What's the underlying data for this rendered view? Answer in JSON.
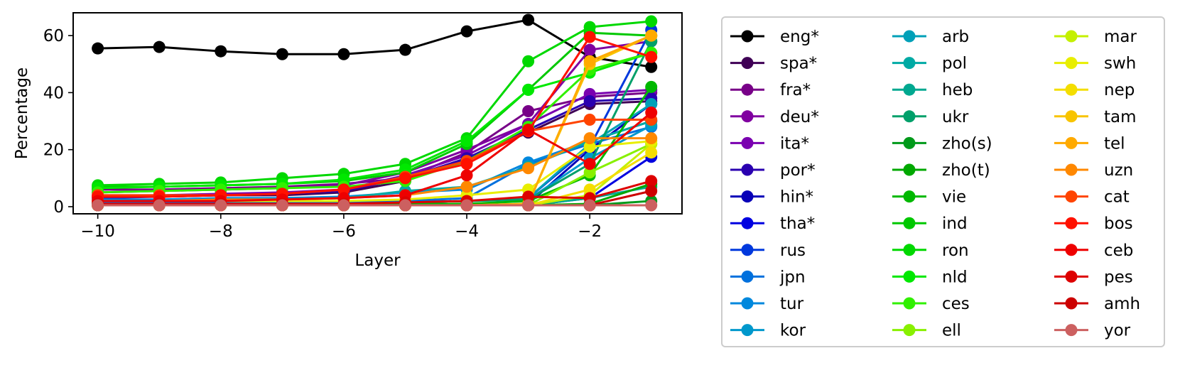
{
  "chart_data": {
    "type": "line",
    "title": "",
    "xlabel": "Layer",
    "ylabel": "Percentage",
    "x": [
      -10,
      -9,
      -8,
      -7,
      -6,
      -5,
      -4,
      -3,
      -2,
      -1
    ],
    "xlim": [
      -10.4,
      -0.5
    ],
    "ylim": [
      -2.5,
      68
    ],
    "xticks": [
      -10,
      -8,
      -6,
      -4,
      -2
    ],
    "xtick_labels": [
      "−10",
      "−8",
      "−6",
      "−4",
      "−2"
    ],
    "yticks": [
      0,
      20,
      40,
      60
    ],
    "ytick_labels": [
      "0",
      "20",
      "40",
      "60"
    ],
    "grid": false,
    "legend_placement": "outside-right",
    "legend_columns": 3,
    "series": [
      {
        "name": "eng*",
        "color": "#000000",
        "values": [
          55.5,
          56,
          54.5,
          53.5,
          53.5,
          55,
          61.5,
          65.5,
          52.5,
          49
        ]
      },
      {
        "name": "spa*",
        "color": "#3f0055",
        "values": [
          3.5,
          3.5,
          4,
          4,
          5,
          9,
          17,
          26,
          36,
          37
        ]
      },
      {
        "name": "fra*",
        "color": "#780088",
        "values": [
          6,
          6,
          6.5,
          7,
          8,
          10,
          19,
          33.5,
          38.5,
          40
        ]
      },
      {
        "name": "deu*",
        "color": "#8000a0",
        "values": [
          5,
          5.5,
          6,
          6.5,
          7.5,
          12,
          20,
          29,
          55,
          58
        ]
      },
      {
        "name": "ita*",
        "color": "#7a00b0",
        "values": [
          4,
          4,
          4.5,
          5,
          6,
          11,
          18,
          29,
          39.5,
          41
        ]
      },
      {
        "name": "por*",
        "color": "#2a00b0",
        "values": [
          3,
          3.5,
          4,
          4.5,
          5.5,
          10,
          17,
          27,
          37,
          38
        ]
      },
      {
        "name": "hin*",
        "color": "#0800b8",
        "values": [
          0.5,
          0.5,
          0.5,
          0.5,
          0.5,
          0.5,
          0.5,
          1,
          20,
          36
        ]
      },
      {
        "name": "tha*",
        "color": "#0000e0",
        "values": [
          0.5,
          0.5,
          0.5,
          0.5,
          0.5,
          0.5,
          0.5,
          0.5,
          3,
          17.5
        ]
      },
      {
        "name": "rus",
        "color": "#0038dd",
        "values": [
          1,
          1,
          1,
          1,
          1,
          1.5,
          2,
          3,
          21,
          62
        ]
      },
      {
        "name": "jpn",
        "color": "#0070dd",
        "values": [
          1.5,
          1.5,
          1.5,
          1.5,
          1.5,
          2,
          3,
          15,
          22,
          28
        ]
      },
      {
        "name": "tur",
        "color": "#0088dd",
        "values": [
          2.5,
          2.5,
          3,
          3,
          3.5,
          5,
          6,
          15.5,
          23,
          30
        ]
      },
      {
        "name": "kor",
        "color": "#0098cc",
        "values": [
          1,
          1,
          1,
          1,
          1,
          1.5,
          2,
          2.5,
          17,
          28.5
        ]
      },
      {
        "name": "arb",
        "color": "#00a0b8",
        "values": [
          1,
          1,
          1,
          1,
          1,
          1.5,
          2,
          3,
          22,
          36
        ]
      },
      {
        "name": "pol",
        "color": "#00aaa4",
        "values": [
          2,
          2,
          2,
          2.5,
          3,
          5.5,
          7,
          14,
          23,
          30
        ]
      },
      {
        "name": "heb",
        "color": "#00a890",
        "values": [
          0.5,
          0.5,
          0.5,
          0.5,
          0.5,
          0.5,
          0.5,
          0.5,
          3,
          7
        ]
      },
      {
        "name": "ukr",
        "color": "#00a06a",
        "values": [
          1,
          1,
          1,
          1,
          1,
          1.5,
          2,
          2.5,
          15,
          58
        ]
      },
      {
        "name": "zho(s)",
        "color": "#009a1a",
        "values": [
          0.5,
          0.5,
          0.5,
          0.5,
          0.5,
          0.5,
          0.5,
          0.5,
          0.5,
          2
        ]
      },
      {
        "name": "zho(t)",
        "color": "#00a800",
        "values": [
          0.5,
          0.5,
          0.5,
          0.5,
          0.5,
          0.5,
          0.5,
          0.5,
          1,
          8
        ]
      },
      {
        "name": "vie",
        "color": "#00b800",
        "values": [
          0.5,
          0.5,
          0.5,
          0.5,
          0.5,
          1,
          1,
          2,
          11,
          42
        ]
      },
      {
        "name": "ind",
        "color": "#00c800",
        "values": [
          7,
          7,
          7.5,
          8,
          9,
          12,
          22,
          41,
          61,
          60
        ]
      },
      {
        "name": "ron",
        "color": "#00d800",
        "values": [
          7.5,
          8,
          8.5,
          10,
          11.5,
          15,
          24,
          51,
          63,
          65
        ]
      },
      {
        "name": "nld",
        "color": "#00e800",
        "values": [
          6.5,
          7,
          7.5,
          8,
          9.5,
          13,
          23,
          41,
          47,
          54
        ]
      },
      {
        "name": "ces",
        "color": "#30f000",
        "values": [
          5,
          5.5,
          6,
          6.5,
          7,
          9,
          16,
          28,
          48,
          54
        ]
      },
      {
        "name": "ell",
        "color": "#88f000",
        "values": [
          0.5,
          0.5,
          0.5,
          0.5,
          0.5,
          0.5,
          0.5,
          0.5,
          12,
          22
        ]
      },
      {
        "name": "mar",
        "color": "#c4f000",
        "values": [
          0.5,
          0.5,
          0.5,
          0.5,
          0.5,
          0.5,
          0.5,
          0.5,
          4,
          22
        ]
      },
      {
        "name": "swh",
        "color": "#e8ee00",
        "values": [
          2,
          2,
          2,
          2,
          2,
          2.5,
          4,
          6,
          21,
          23
        ]
      },
      {
        "name": "nep",
        "color": "#f4de00",
        "values": [
          0.5,
          0.5,
          0.5,
          0.5,
          0.5,
          0.5,
          0.5,
          0.5,
          6,
          19
        ]
      },
      {
        "name": "tam",
        "color": "#f8c400",
        "values": [
          0.5,
          0.5,
          0.5,
          0.5,
          0.5,
          0.5,
          0.5,
          1,
          50,
          60
        ]
      },
      {
        "name": "tel",
        "color": "#ffaa00",
        "values": [
          0.5,
          0.5,
          0.5,
          0.5,
          0.5,
          0.5,
          0.5,
          1,
          51,
          60
        ]
      },
      {
        "name": "uzn",
        "color": "#ff8800",
        "values": [
          2,
          2,
          2.5,
          2.5,
          3,
          4,
          7,
          13.5,
          24,
          24
        ]
      },
      {
        "name": "cat",
        "color": "#ff4400",
        "values": [
          4,
          4,
          4,
          4.5,
          6,
          10.5,
          16,
          26.5,
          30.5,
          30.5
        ]
      },
      {
        "name": "bos",
        "color": "#ff1100",
        "values": [
          3.5,
          3.5,
          4,
          4.5,
          6,
          10,
          15,
          26.5,
          59.5,
          52.5
        ]
      },
      {
        "name": "ceb",
        "color": "#ee0000",
        "values": [
          2,
          2,
          2,
          2.5,
          3,
          4,
          11,
          27,
          15,
          33
        ]
      },
      {
        "name": "pes",
        "color": "#dd0000",
        "values": [
          1,
          1,
          1,
          1,
          1,
          1.5,
          2,
          3.5,
          3,
          9
        ]
      },
      {
        "name": "amh",
        "color": "#cc0000",
        "values": [
          0.5,
          0.5,
          0.5,
          0.5,
          0.5,
          0.5,
          0.5,
          0.5,
          0.5,
          5.5
        ]
      },
      {
        "name": "yor",
        "color": "#cc6060",
        "values": [
          0.5,
          0.5,
          0.5,
          0.5,
          0.5,
          0.5,
          0.5,
          0.5,
          0.5,
          0.5
        ]
      }
    ]
  }
}
